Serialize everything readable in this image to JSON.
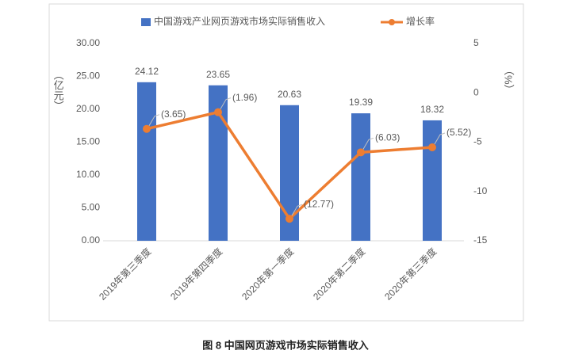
{
  "chart_data": {
    "type": "bar",
    "categories": [
      "2019年第三季度",
      "2019年第四季度",
      "2020年第一季度",
      "2020年第二季度",
      "2020年第三季度"
    ],
    "series": [
      {
        "name": "中国游戏产业网页游戏市场实际销售收入",
        "type": "bar",
        "color": "#4472c4",
        "values": [
          24.12,
          23.65,
          20.63,
          19.39,
          18.32
        ]
      },
      {
        "name": "增长率",
        "type": "line",
        "axis": "y2",
        "color": "#ed7d31",
        "values": [
          -3.65,
          -1.96,
          -12.77,
          -6.03,
          -5.52
        ],
        "value_labels": [
          "(3.65)",
          "(1.96)",
          "(12.77)",
          "(6.03)",
          "(5.52)"
        ]
      }
    ],
    "ylabel": "（亿元）",
    "y2label": "（%）",
    "ylim": [
      0,
      30
    ],
    "yticks": [
      {
        "value": 0,
        "label": "0.00"
      },
      {
        "value": 5,
        "label": "5.00"
      },
      {
        "value": 10,
        "label": "10.00"
      },
      {
        "value": 15,
        "label": "15.00"
      },
      {
        "value": 20,
        "label": "20.00"
      },
      {
        "value": 25,
        "label": "25.00"
      },
      {
        "value": 30,
        "label": "30.00"
      }
    ],
    "y2lim": [
      -15,
      5
    ],
    "y2ticks": [
      -15,
      -10,
      -5,
      0,
      5
    ],
    "caption": "图 8  中国网页游戏市场实际销售收入"
  }
}
